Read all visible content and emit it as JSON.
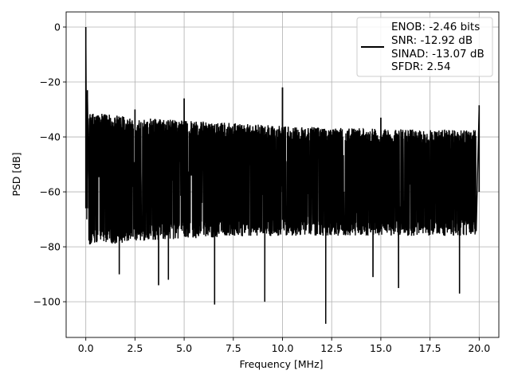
{
  "chart_data": {
    "type": "line",
    "title": "",
    "xlabel": "Frequency [MHz]",
    "ylabel": "PSD [dB]",
    "xlim": [
      -1,
      21
    ],
    "ylim": [
      -113,
      5.5
    ],
    "xticks": [
      0.0,
      2.5,
      5.0,
      7.5,
      10.0,
      12.5,
      15.0,
      17.5,
      20.0
    ],
    "xtick_labels": [
      "0.0",
      "2.5",
      "5.0",
      "7.5",
      "10.0",
      "12.5",
      "15.0",
      "17.5",
      "20.0"
    ],
    "yticks": [
      0,
      -20,
      -40,
      -60,
      -80,
      -100
    ],
    "ytick_labels": [
      "0",
      "−20",
      "−40",
      "−60",
      "−80",
      "−100"
    ],
    "grid": true,
    "legend_position": "top-right",
    "series": [
      {
        "name": "ENOB: -2.46 bits\nSNR: -12.92 dB\nSINAD: -13.07 dB\nSFDR: 2.54",
        "color": "#000000",
        "noise_band_top": [
          [
            0.15,
            -31
          ],
          [
            2.5,
            -33
          ],
          [
            5,
            -34
          ],
          [
            7.5,
            -35
          ],
          [
            10,
            -36
          ],
          [
            12.5,
            -36.5
          ],
          [
            15,
            -37
          ],
          [
            17.5,
            -37.5
          ],
          [
            19.85,
            -37.5
          ]
        ],
        "noise_band_bottom": [
          [
            0.15,
            -80
          ],
          [
            2.5,
            -78
          ],
          [
            5,
            -77
          ],
          [
            7.5,
            -76.5
          ],
          [
            10,
            -76
          ],
          [
            12.5,
            -76
          ],
          [
            15,
            -76
          ],
          [
            17.5,
            -76
          ],
          [
            19.85,
            -76
          ]
        ],
        "peaks": [
          {
            "x": 0.0,
            "y": 0.0
          },
          {
            "x": 0.08,
            "y": -23
          },
          {
            "x": 2.5,
            "y": -30
          },
          {
            "x": 5.0,
            "y": -26
          },
          {
            "x": 10.0,
            "y": -22
          },
          {
            "x": 15.0,
            "y": -33
          },
          {
            "x": 20.0,
            "y": -28.5
          }
        ],
        "dips": [
          {
            "x": 0.05,
            "y": -66
          },
          {
            "x": 1.7,
            "y": -90
          },
          {
            "x": 3.7,
            "y": -94
          },
          {
            "x": 4.2,
            "y": -92
          },
          {
            "x": 6.55,
            "y": -101
          },
          {
            "x": 9.1,
            "y": -100
          },
          {
            "x": 12.2,
            "y": -108
          },
          {
            "x": 14.6,
            "y": -91
          },
          {
            "x": 15.9,
            "y": -95
          },
          {
            "x": 19.0,
            "y": -97
          }
        ]
      }
    ]
  },
  "legend": {
    "lines": [
      "ENOB: -2.46 bits",
      "SNR: -12.92 dB",
      "SINAD: -13.07 dB",
      "SFDR: 2.54"
    ]
  }
}
